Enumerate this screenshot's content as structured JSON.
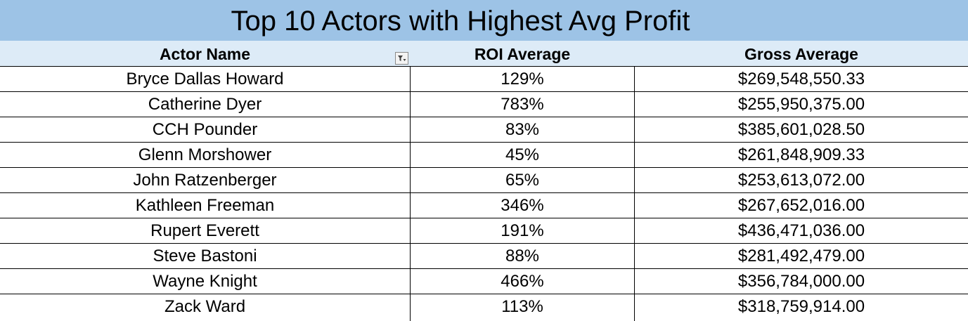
{
  "title": "Top 10 Actors with Highest Avg Profit",
  "columns": {
    "actor": "Actor Name",
    "roi": "ROI Average",
    "gross": "Gross Average"
  },
  "filter_icon": "filter-dropdown-icon",
  "rows": [
    {
      "actor": "Bryce Dallas Howard",
      "roi": "129%",
      "gross": "$269,548,550.33"
    },
    {
      "actor": "Catherine Dyer",
      "roi": "783%",
      "gross": "$255,950,375.00"
    },
    {
      "actor": "CCH Pounder",
      "roi": "83%",
      "gross": "$385,601,028.50"
    },
    {
      "actor": "Glenn Morshower",
      "roi": "45%",
      "gross": "$261,848,909.33"
    },
    {
      "actor": "John Ratzenberger",
      "roi": "65%",
      "gross": "$253,613,072.00"
    },
    {
      "actor": "Kathleen Freeman",
      "roi": "346%",
      "gross": "$267,652,016.00"
    },
    {
      "actor": "Rupert Everett",
      "roi": "191%",
      "gross": "$436,471,036.00"
    },
    {
      "actor": "Steve Bastoni",
      "roi": "88%",
      "gross": "$281,492,479.00"
    },
    {
      "actor": "Wayne Knight",
      "roi": "466%",
      "gross": "$356,784,000.00"
    },
    {
      "actor": "Zack Ward",
      "roi": "113%",
      "gross": "$318,759,914.00"
    }
  ],
  "colors": {
    "title_band": "#9dc3e6",
    "header_band": "#ddebf7",
    "grid_lines": "#000000"
  }
}
